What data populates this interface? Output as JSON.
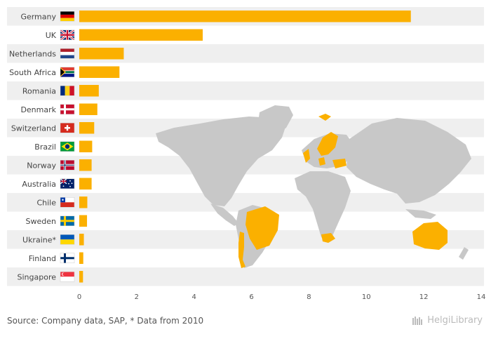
{
  "chart_data": {
    "type": "bar",
    "orientation": "horizontal",
    "categories": [
      "Germany",
      "UK",
      "Netherlands",
      "South Africa",
      "Romania",
      "Denmark",
      "Switzerland",
      "Brazil",
      "Norway",
      "Australia",
      "Chile",
      "Sweden",
      "Ukraine*",
      "Finland",
      "Singapore"
    ],
    "values": [
      11.55,
      4.3,
      1.55,
      1.4,
      0.68,
      0.63,
      0.52,
      0.45,
      0.43,
      0.43,
      0.28,
      0.27,
      0.16,
      0.14,
      0.13
    ],
    "xlim": [
      0,
      14
    ],
    "xticks": [
      0,
      2,
      4,
      6,
      8,
      10,
      12,
      14
    ],
    "bar_color": "#FBB000",
    "band_color": "#EFEFEF",
    "map_land_color": "#C8C8C8",
    "map_highlight_color": "#FBB000"
  },
  "flags": [
    "germany-flag-icon",
    "uk-flag-icon",
    "netherlands-flag-icon",
    "south-africa-flag-icon",
    "romania-flag-icon",
    "denmark-flag-icon",
    "switzerland-flag-icon",
    "brazil-flag-icon",
    "norway-flag-icon",
    "australia-flag-icon",
    "chile-flag-icon",
    "sweden-flag-icon",
    "ukraine-flag-icon",
    "finland-flag-icon",
    "singapore-flag-icon"
  ],
  "footer": {
    "source": "Source: Company data, SAP, * Data from 2010"
  },
  "brand": {
    "name": "HelgiLibrary"
  }
}
